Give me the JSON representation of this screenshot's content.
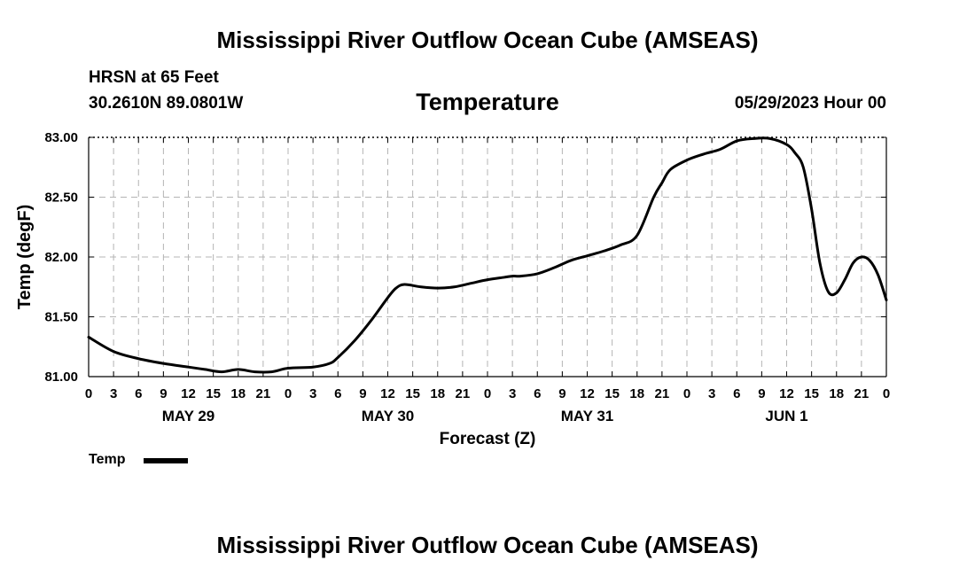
{
  "header": {
    "title_top": "Mississippi River Outflow Ocean Cube (AMSEAS)",
    "station": "HRSN at 65 Feet",
    "coords": "30.2610N  89.0801W",
    "variable": "Temperature",
    "datetime": "05/29/2023 Hour 00",
    "title_bottom": "Mississippi River Outflow Ocean Cube (AMSEAS)"
  },
  "legend": {
    "series_label": "Temp",
    "color": "#000000"
  },
  "chart_data": {
    "type": "line",
    "title": "Temperature",
    "xlabel": "Forecast (Z)",
    "ylabel": "Temp (degF)",
    "ylim": [
      81.0,
      83.0
    ],
    "yticks": [
      "81.00",
      "81.50",
      "82.00",
      "82.50",
      "83.00"
    ],
    "xlim_hours": [
      0,
      96
    ],
    "xtick_hours": [
      "0",
      "3",
      "6",
      "9",
      "12",
      "15",
      "18",
      "21",
      "0",
      "3",
      "6",
      "9",
      "12",
      "15",
      "18",
      "21",
      "0",
      "3",
      "6",
      "9",
      "12",
      "15",
      "18",
      "21",
      "0",
      "3",
      "6",
      "9",
      "12",
      "15",
      "18",
      "21",
      "0"
    ],
    "day_labels": [
      "MAY 29",
      "MAY 30",
      "MAY 31",
      "JUN 1"
    ],
    "grid": true,
    "series": [
      {
        "name": "Temp",
        "x": [
          0,
          3,
          6,
          9,
          12,
          14,
          16,
          18,
          20,
          22,
          24,
          27,
          29,
          30,
          32,
          34,
          36,
          37,
          38,
          40,
          42,
          44,
          46,
          48,
          50,
          51,
          52,
          54,
          56,
          58,
          60,
          62,
          64,
          66,
          68,
          69,
          70,
          72,
          74,
          76,
          78,
          80,
          82,
          84,
          85,
          86,
          87,
          88,
          89,
          90,
          91,
          92,
          93,
          94,
          95,
          96
        ],
        "values": [
          81.33,
          81.21,
          81.15,
          81.11,
          81.08,
          81.06,
          81.04,
          81.06,
          81.04,
          81.04,
          81.07,
          81.08,
          81.11,
          81.16,
          81.3,
          81.47,
          81.66,
          81.74,
          81.77,
          81.75,
          81.74,
          81.75,
          81.78,
          81.81,
          81.83,
          81.84,
          81.84,
          81.86,
          81.91,
          81.97,
          82.01,
          82.05,
          82.1,
          82.18,
          82.5,
          82.62,
          82.73,
          82.81,
          82.86,
          82.9,
          82.97,
          82.99,
          82.99,
          82.94,
          82.87,
          82.75,
          82.4,
          81.95,
          81.71,
          81.7,
          81.81,
          81.95,
          82.0,
          81.97,
          81.85,
          81.64
        ]
      }
    ]
  }
}
